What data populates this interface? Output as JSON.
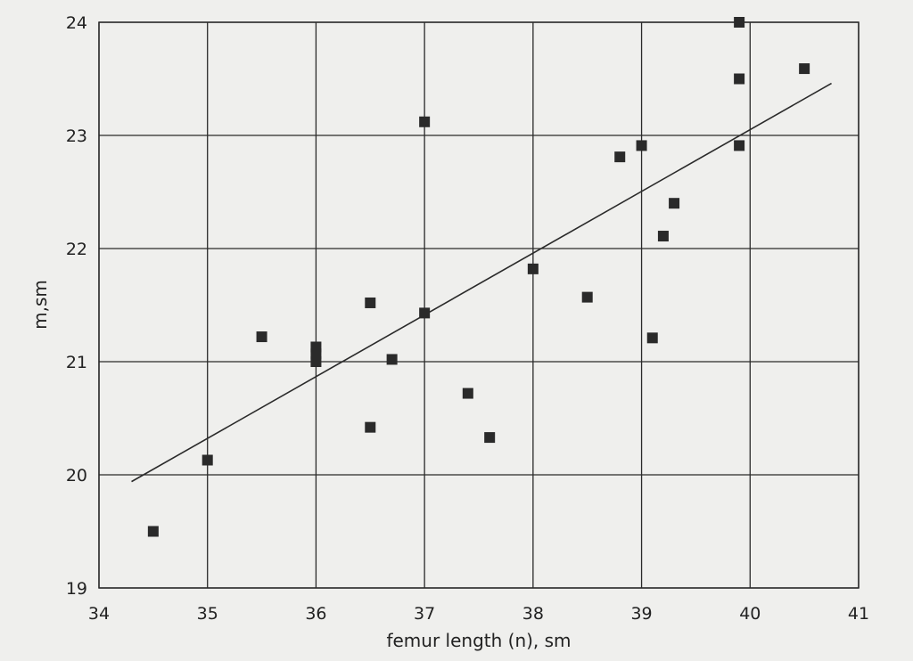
{
  "chart_data": {
    "type": "scatter",
    "title": "",
    "xlabel": "femur length (n), sm",
    "ylabel": "m,sm",
    "xlim": [
      34,
      41
    ],
    "ylim": [
      19,
      24
    ],
    "xticks": [
      "34",
      "35",
      "36",
      "37",
      "38",
      "39",
      "40",
      "41"
    ],
    "yticks": [
      "19",
      "20",
      "21",
      "22",
      "23",
      "24"
    ],
    "grid": true,
    "points": [
      [
        34.5,
        19.5
      ],
      [
        35.0,
        20.13
      ],
      [
        35.5,
        21.22
      ],
      [
        36.0,
        21.13
      ],
      [
        36.0,
        21.07
      ],
      [
        36.0,
        21.0
      ],
      [
        36.5,
        21.52
      ],
      [
        36.5,
        20.42
      ],
      [
        36.7,
        21.02
      ],
      [
        37.0,
        23.12
      ],
      [
        37.0,
        21.43
      ],
      [
        37.4,
        20.72
      ],
      [
        37.6,
        20.33
      ],
      [
        38.0,
        21.82
      ],
      [
        38.5,
        21.57
      ],
      [
        38.8,
        22.81
      ],
      [
        39.0,
        22.91
      ],
      [
        39.1,
        21.21
      ],
      [
        39.2,
        22.11
      ],
      [
        39.3,
        22.4
      ],
      [
        39.9,
        24.0
      ],
      [
        39.9,
        23.5
      ],
      [
        39.9,
        22.91
      ],
      [
        40.5,
        23.59
      ]
    ],
    "fit_line": [
      [
        34.3,
        19.94
      ],
      [
        40.75,
        23.46
      ]
    ],
    "colors": {
      "marker": "#2a2a2a",
      "line": "#2a2a2a",
      "grid": "#2a2a2a"
    }
  }
}
